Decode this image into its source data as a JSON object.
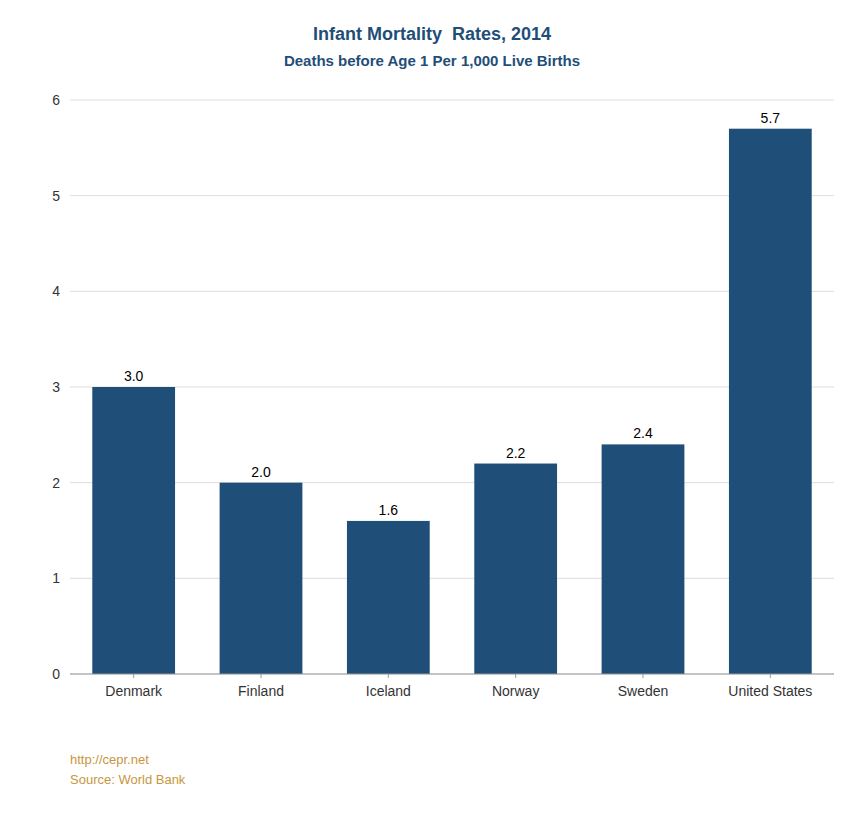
{
  "chart_data": {
    "type": "bar",
    "title": "Infant Mortality  Rates, 2014",
    "subtitle": "Deaths before Age 1 Per 1,000 Live Births",
    "categories": [
      "Denmark",
      "Finland",
      "Iceland",
      "Norway",
      "Sweden",
      "United States"
    ],
    "values": [
      3.0,
      2.0,
      1.6,
      2.2,
      2.4,
      5.7
    ],
    "value_labels": [
      "3.0",
      "2.0",
      "1.6",
      "2.2",
      "2.4",
      "5.7"
    ],
    "color": "#1F4E79",
    "ylim": [
      0,
      6
    ],
    "yticks": [
      0,
      1,
      2,
      3,
      4,
      5,
      6
    ],
    "grid": true,
    "data_labels": true,
    "annotations": [
      "http://cepr.net",
      "Source: World Bank"
    ]
  }
}
